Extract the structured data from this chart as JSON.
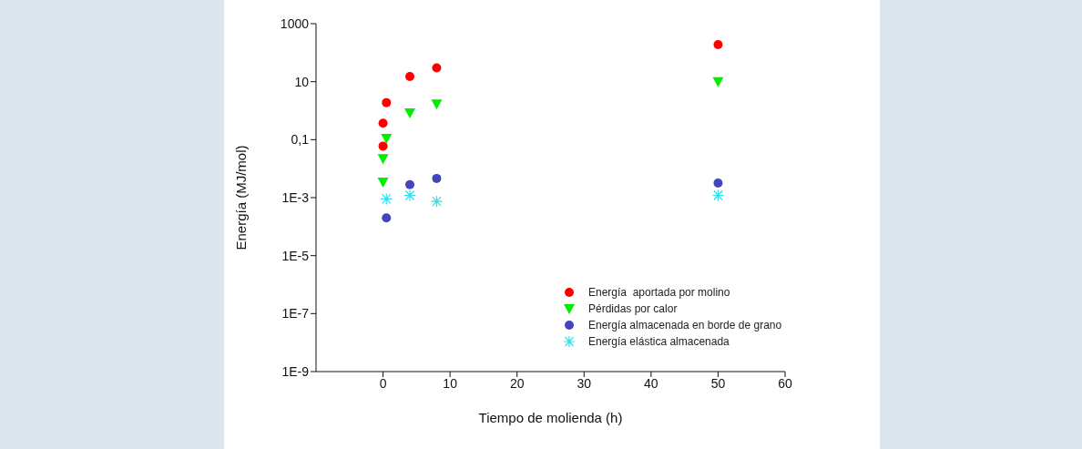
{
  "chart_data": {
    "type": "scatter",
    "xlabel": "Tiempo de molienda (h)",
    "ylabel": "Energía (MJ/mol)",
    "log": "y",
    "grid": false,
    "legend": "bottom right",
    "xlim": [
      -10,
      60
    ],
    "xticks": [
      0,
      10,
      20,
      30,
      40,
      50,
      60
    ],
    "ylim": [
      1e-09,
      1000
    ],
    "yticks": [
      {
        "value": 1e-09,
        "label": "1E-9"
      },
      {
        "value": 1e-07,
        "label": "1E-7"
      },
      {
        "value": 1e-05,
        "label": "1E-5"
      },
      {
        "value": 0.001,
        "label": "1E-3"
      },
      {
        "value": 0.1,
        "label": "0,1"
      },
      10,
      1000
    ],
    "series": [
      {
        "name": "Energía  aportada por molino",
        "color": "#ff0000",
        "marker": "circle",
        "x": [
          0,
          0,
          0.5,
          4,
          8,
          50
        ],
        "values": [
          0.06,
          0.37,
          1.9,
          15,
          30,
          190
        ]
      },
      {
        "name": "Pérdidas por calor",
        "color": "#00ee00",
        "marker": "triangle",
        "x": [
          0.5,
          0,
          0,
          4,
          8,
          50
        ],
        "values": [
          0.11,
          0.022,
          0.0034,
          0.83,
          1.7,
          10
        ]
      },
      {
        "name": "Energía almacenada en borde de grano",
        "color": "#4444bb",
        "marker": "circle",
        "x": [
          0.5,
          4,
          8,
          50
        ],
        "values": [
          0.0002,
          0.0028,
          0.0046,
          0.0032
        ]
      },
      {
        "name": "Energía elástica almacenada",
        "color": "#33ddee",
        "marker": "cross",
        "x": [
          0.5,
          4,
          8,
          50
        ],
        "values": [
          0.0009,
          0.0012,
          0.00074,
          0.0012
        ]
      }
    ]
  }
}
